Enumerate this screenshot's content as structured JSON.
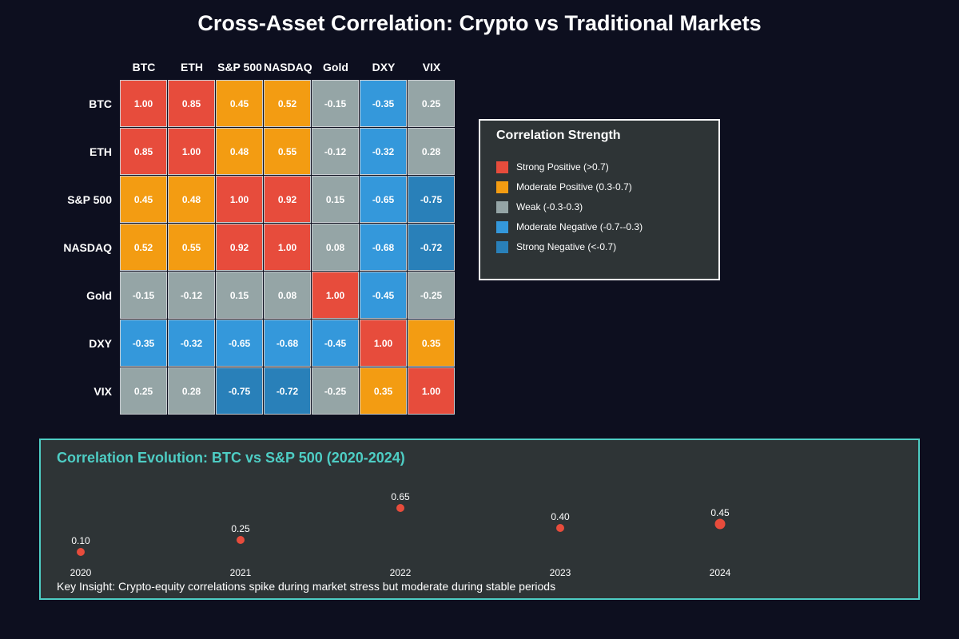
{
  "title": "Cross-Asset Correlation: Crypto vs Traditional Markets",
  "colors": {
    "strong_positive": "#e74c3c",
    "moderate_positive": "#f39c12",
    "weak": "#95a5a6",
    "moderate_negative": "#3498db",
    "strong_negative": "#2980b9",
    "accent": "#4ecdc4"
  },
  "legend": {
    "title": "Correlation Strength",
    "items": [
      {
        "label": "Strong Positive (>0.7)",
        "color": "#e74c3c"
      },
      {
        "label": "Moderate Positive (0.3-0.7)",
        "color": "#f39c12"
      },
      {
        "label": "Weak (-0.3-0.3)",
        "color": "#95a5a6"
      },
      {
        "label": "Moderate Negative (-0.7--0.3)",
        "color": "#3498db"
      },
      {
        "label": "Strong Negative (<-0.7)",
        "color": "#2980b9"
      }
    ]
  },
  "evolution": {
    "title": "Correlation Evolution: BTC vs S&P 500 (2020-2024)",
    "insight": "Key Insight: Crypto-equity correlations spike during market stress but moderate during stable periods"
  },
  "chart_data": [
    {
      "type": "heatmap",
      "title": "Cross-Asset Correlation: Crypto vs Traditional Markets",
      "x_labels": [
        "BTC",
        "ETH",
        "S&P 500",
        "NASDAQ",
        "Gold",
        "DXY",
        "VIX"
      ],
      "y_labels": [
        "BTC",
        "ETH",
        "S&P 500",
        "NASDAQ",
        "Gold",
        "DXY",
        "VIX"
      ],
      "values": [
        [
          "1.00",
          "0.85",
          "0.45",
          "0.52",
          "-0.15",
          "-0.35",
          "0.25"
        ],
        [
          "0.85",
          "1.00",
          "0.48",
          "0.55",
          "-0.12",
          "-0.32",
          "0.28"
        ],
        [
          "0.45",
          "0.48",
          "1.00",
          "0.92",
          "0.15",
          "-0.65",
          "-0.75"
        ],
        [
          "0.52",
          "0.55",
          "0.92",
          "1.00",
          "0.08",
          "-0.68",
          "-0.72"
        ],
        [
          "-0.15",
          "-0.12",
          "0.15",
          "0.08",
          "1.00",
          "-0.45",
          "-0.25"
        ],
        [
          "-0.35",
          "-0.32",
          "-0.65",
          "-0.68",
          "-0.45",
          "1.00",
          "0.35"
        ],
        [
          "0.25",
          "0.28",
          "-0.75",
          "-0.72",
          "-0.25",
          "0.35",
          "1.00"
        ]
      ]
    },
    {
      "type": "scatter",
      "title": "Correlation Evolution: BTC vs S&P 500 (2020-2024)",
      "x": [
        "2020",
        "2021",
        "2022",
        "2023",
        "2024"
      ],
      "y": [
        0.1,
        0.25,
        0.65,
        0.4,
        0.45
      ],
      "labels": [
        "0.10",
        "0.25",
        "0.65",
        "0.40",
        "0.45"
      ],
      "color": "#e74c3c"
    }
  ]
}
